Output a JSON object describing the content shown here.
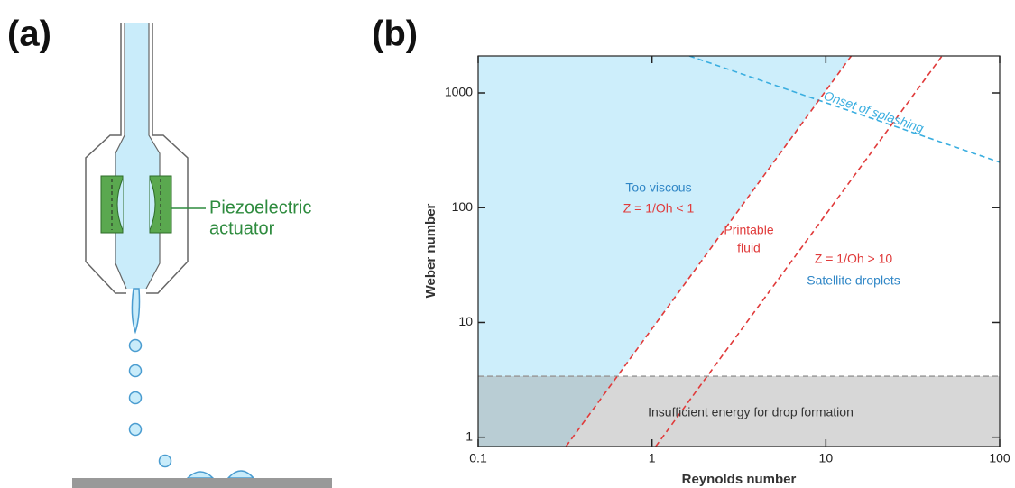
{
  "panel_labels": [
    "(a)",
    "(b)"
  ],
  "diagram": {
    "label_lines": [
      "Piezoelectric",
      "actuator"
    ]
  },
  "chart_data": {
    "type": "regime-map",
    "xlabel": "Reynolds number",
    "ylabel": "Weber number",
    "xlog": true,
    "ylog": true,
    "xlim": [
      0.1,
      100
    ],
    "ylim": [
      0.83,
      2100
    ],
    "xticks": [
      0.1,
      1,
      10,
      100
    ],
    "yticks": [
      1,
      10,
      100,
      1000
    ],
    "lines": [
      {
        "name": "Onset of splashing",
        "color": "#3aaee0",
        "x": [
          1.64,
          100
        ],
        "y": [
          2100,
          249
        ]
      },
      {
        "color": "#e03a3a",
        "x": [
          0.32,
          14
        ],
        "y": [
          0.83,
          2100
        ]
      },
      {
        "color": "#e03a3a",
        "x": [
          1.05,
          46.6
        ],
        "y": [
          0.83,
          2100
        ]
      }
    ],
    "viscous_region_color": "#cdeefb",
    "threshold": {
      "label": "Insufficient energy for drop formation",
      "y": 3.4,
      "color": "#9a9a9a"
    },
    "annotations": [
      {
        "text": "Too viscous",
        "color": "#2f86c6"
      },
      {
        "text": "Z = 1/Oh < 1",
        "color": "#e03a3a"
      },
      {
        "text": "Printable",
        "color": "#e03a3a"
      },
      {
        "text": "fluid",
        "color": "#e03a3a"
      },
      {
        "text": "Z = 1/Oh > 10",
        "color": "#e03a3a"
      },
      {
        "text": "Satellite droplets",
        "color": "#2f86c6"
      }
    ]
  }
}
